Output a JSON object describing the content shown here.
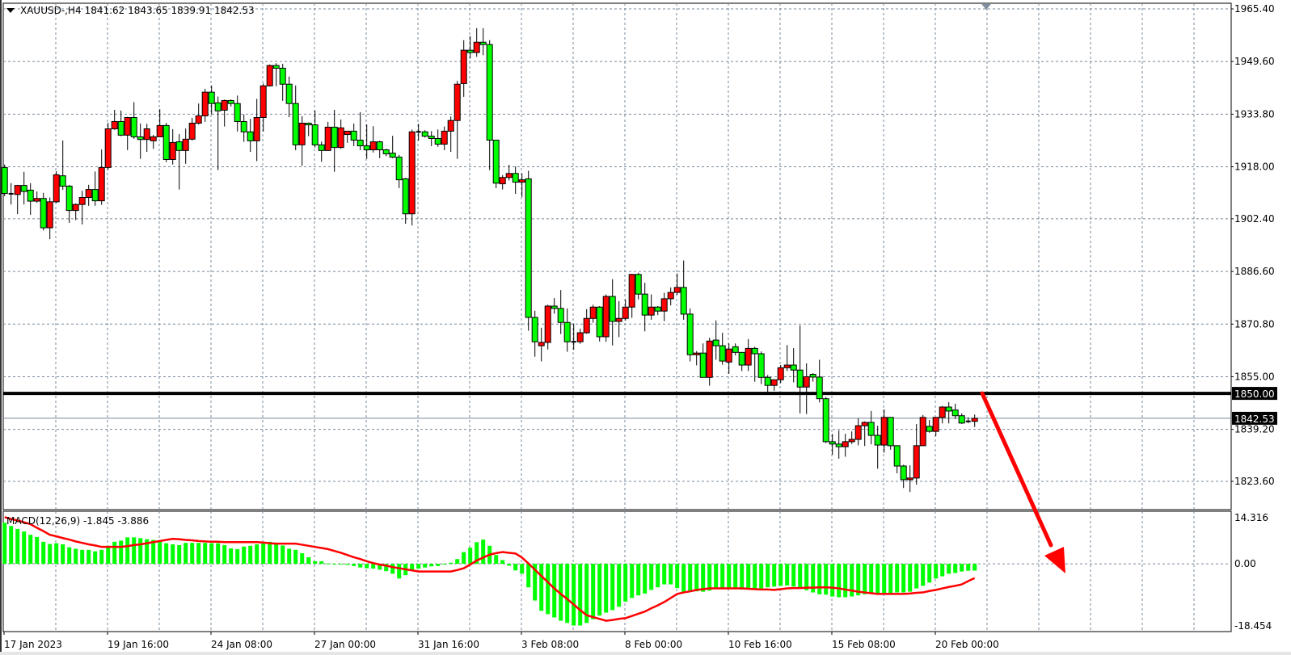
{
  "header": {
    "symbol": "XAUUSD-,H4",
    "ohlc_text": "1841.62 1843.65 1839.91 1842.53"
  },
  "price_axis": {
    "labels": [
      "1965.40",
      "1949.60",
      "1933.80",
      "1918.00",
      "1902.40",
      "1886.60",
      "1870.80",
      "1855.00",
      "1839.20",
      "1823.60"
    ]
  },
  "horizontal_line": {
    "price": 1850.0,
    "label": "1850.00",
    "color": "#000000"
  },
  "current_price": {
    "price": 1842.53,
    "label": "1842.53",
    "color": "#778899"
  },
  "time_axis": {
    "labels": [
      "17 Jan 2023",
      "19 Jan 16:00",
      "24 Jan 08:00",
      "27 Jan 00:00",
      "31 Jan 16:00",
      "3 Feb 08:00",
      "8 Feb 00:00",
      "10 Feb 16:00",
      "15 Feb 08:00",
      "20 Feb 00:00"
    ]
  },
  "macd": {
    "label": "MACD(12,26,9) -1.845 -3.886",
    "axis_labels": [
      "14.316",
      "0.00",
      "-18.454"
    ]
  },
  "arrow": {
    "color": "#ff0000",
    "direction": "down"
  },
  "colors": {
    "bull": "#ff0000",
    "bear": "#00ff00",
    "grid": "#778899",
    "histogram": "#00ff00",
    "signal": "#ff0000"
  },
  "chart_data": [
    {
      "type": "candlestick",
      "title": "XAUUSD-,H4",
      "ylim": [
        1823.6,
        1965.4
      ],
      "grid": true,
      "ohlc": [
        [
          1917.8,
          1918.7,
          1909.2,
          1910.0
        ],
        [
          1909.9,
          1913.1,
          1906.7,
          1909.8
        ],
        [
          1909.7,
          1912.6,
          1903.8,
          1912.4
        ],
        [
          1912.4,
          1916.5,
          1906.7,
          1910.6
        ],
        [
          1911.0,
          1913.1,
          1903.6,
          1907.7
        ],
        [
          1907.7,
          1910.6,
          1907.2,
          1908.5
        ],
        [
          1908.5,
          1910.2,
          1898.9,
          1899.7
        ],
        [
          1899.7,
          1908.8,
          1896.3,
          1907.5
        ],
        [
          1907.5,
          1916.7,
          1907.2,
          1915.6
        ],
        [
          1915.3,
          1925.9,
          1911.1,
          1912.2
        ],
        [
          1912.2,
          1912.6,
          1901.2,
          1904.9
        ],
        [
          1904.9,
          1907.0,
          1902.0,
          1906.7
        ],
        [
          1906.7,
          1910.8,
          1900.7,
          1908.8
        ],
        [
          1908.8,
          1912.6,
          1906.3,
          1911.2
        ],
        [
          1911.2,
          1916.6,
          1906.3,
          1907.8
        ],
        [
          1907.8,
          1923.2,
          1906.6,
          1917.8
        ],
        [
          1917.8,
          1931.2,
          1917.1,
          1929.4
        ],
        [
          1929.4,
          1935.1,
          1929.1,
          1931.6
        ],
        [
          1931.6,
          1934.9,
          1927.2,
          1927.5
        ],
        [
          1927.5,
          1933.0,
          1923.0,
          1932.8
        ],
        [
          1932.8,
          1937.4,
          1926.4,
          1927.0
        ],
        [
          1927.0,
          1931.0,
          1920.4,
          1926.2
        ],
        [
          1926.2,
          1930.9,
          1922.5,
          1929.4
        ],
        [
          1925.8,
          1927.6,
          1923.4,
          1927.0
        ],
        [
          1927.0,
          1935.3,
          1927.0,
          1930.4
        ],
        [
          1930.4,
          1931.2,
          1919.4,
          1920.2
        ],
        [
          1920.2,
          1929.3,
          1918.7,
          1925.3
        ],
        [
          1925.5,
          1927.8,
          1911.2,
          1922.9
        ],
        [
          1922.9,
          1929.5,
          1918.9,
          1926.3
        ],
        [
          1926.3,
          1932.7,
          1925.9,
          1931.1
        ],
        [
          1931.1,
          1937.0,
          1930.7,
          1933.3
        ],
        [
          1933.3,
          1941.4,
          1931.5,
          1940.4
        ],
        [
          1940.4,
          1942.4,
          1933.7,
          1937.0
        ],
        [
          1937.2,
          1939.1,
          1917.0,
          1934.8
        ],
        [
          1935.0,
          1938.2,
          1930.1,
          1937.9
        ],
        [
          1937.9,
          1938.2,
          1936.1,
          1937.0
        ],
        [
          1937.0,
          1939.4,
          1928.6,
          1931.6
        ],
        [
          1931.6,
          1933.7,
          1925.5,
          1928.5
        ],
        [
          1928.5,
          1932.4,
          1922.5,
          1925.8
        ],
        [
          1925.8,
          1938.4,
          1919.7,
          1932.8
        ],
        [
          1932.8,
          1943.0,
          1928.6,
          1942.3
        ],
        [
          1942.3,
          1948.7,
          1942.1,
          1948.4
        ],
        [
          1948.4,
          1949.1,
          1942.2,
          1947.6
        ],
        [
          1947.6,
          1948.9,
          1937.8,
          1942.8
        ],
        [
          1942.8,
          1945.1,
          1932.9,
          1937.0
        ],
        [
          1937.0,
          1942.4,
          1923.0,
          1924.6
        ],
        [
          1924.6,
          1933.2,
          1918.3,
          1931.1
        ],
        [
          1931.1,
          1931.3,
          1927.2,
          1930.6
        ],
        [
          1930.6,
          1934.9,
          1923.8,
          1924.6
        ],
        [
          1924.6,
          1925.6,
          1919.5,
          1922.9
        ],
        [
          1922.9,
          1931.5,
          1922.8,
          1929.9
        ],
        [
          1929.9,
          1935.1,
          1916.5,
          1923.8
        ],
        [
          1923.8,
          1932.2,
          1923.4,
          1929.7
        ],
        [
          1927.7,
          1928.7,
          1925.2,
          1928.7
        ],
        [
          1928.7,
          1931.0,
          1924.2,
          1926.0
        ],
        [
          1926.0,
          1934.4,
          1923.0,
          1924.3
        ],
        [
          1924.3,
          1930.7,
          1920.4,
          1923.1
        ],
        [
          1923.1,
          1930.2,
          1922.3,
          1925.5
        ],
        [
          1925.5,
          1925.8,
          1920.6,
          1923.1
        ],
        [
          1923.1,
          1923.4,
          1921.2,
          1921.9
        ],
        [
          1922.1,
          1927.3,
          1920.6,
          1920.9
        ],
        [
          1920.9,
          1921.6,
          1911.6,
          1914.1
        ],
        [
          1914.4,
          1914.7,
          1900.9,
          1903.9
        ],
        [
          1903.9,
          1929.2,
          1900.4,
          1928.5
        ],
        [
          1928.5,
          1930.9,
          1925.9,
          1928.5
        ],
        [
          1928.5,
          1929.0,
          1926.8,
          1927.2
        ],
        [
          1927.2,
          1928.7,
          1924.2,
          1926.5
        ],
        [
          1926.5,
          1929.2,
          1924.0,
          1924.8
        ],
        [
          1924.8,
          1930.1,
          1923.0,
          1928.7
        ],
        [
          1928.7,
          1933.1,
          1922.5,
          1931.9
        ],
        [
          1931.9,
          1943.8,
          1920.4,
          1942.8
        ],
        [
          1943.0,
          1956.0,
          1939.0,
          1953.0
        ],
        [
          1953.0,
          1957.2,
          1950.6,
          1952.3
        ],
        [
          1952.3,
          1959.6,
          1951.0,
          1955.4
        ],
        [
          1955.4,
          1959.6,
          1951.5,
          1954.7
        ],
        [
          1954.7,
          1956.0,
          1917.0,
          1926.0
        ],
        [
          1926.0,
          1926.0,
          1911.6,
          1913.1
        ],
        [
          1912.9,
          1915.5,
          1911.2,
          1914.8
        ],
        [
          1914.8,
          1918.6,
          1913.9,
          1916.0
        ],
        [
          1916.0,
          1918.1,
          1909.9,
          1913.4
        ],
        [
          1913.4,
          1916.0,
          1908.9,
          1914.1
        ],
        [
          1914.4,
          1916.8,
          1868.8,
          1872.8
        ],
        [
          1872.8,
          1874.8,
          1861.0,
          1865.5
        ],
        [
          1864.3,
          1869.7,
          1859.6,
          1865.3
        ],
        [
          1865.3,
          1876.6,
          1863.2,
          1876.2
        ],
        [
          1876.2,
          1878.6,
          1873.9,
          1875.5
        ],
        [
          1875.5,
          1881.0,
          1867.8,
          1871.3
        ],
        [
          1871.3,
          1875.5,
          1862.5,
          1865.5
        ],
        [
          1865.5,
          1870.9,
          1863.1,
          1865.5
        ],
        [
          1865.5,
          1869.4,
          1864.9,
          1868.2
        ],
        [
          1868.2,
          1875.3,
          1867.9,
          1872.5
        ],
        [
          1872.5,
          1876.6,
          1871.2,
          1875.9
        ],
        [
          1875.9,
          1876.2,
          1865.6,
          1867.0
        ],
        [
          1867.0,
          1879.7,
          1865.5,
          1879.1
        ],
        [
          1879.1,
          1884.3,
          1864.4,
          1871.6
        ],
        [
          1871.6,
          1877.7,
          1866.9,
          1872.5
        ],
        [
          1872.5,
          1878.2,
          1871.9,
          1875.9
        ],
        [
          1875.9,
          1885.9,
          1872.7,
          1885.7
        ],
        [
          1885.7,
          1886.2,
          1878.2,
          1879.8
        ],
        [
          1879.8,
          1883.2,
          1868.6,
          1873.5
        ],
        [
          1873.5,
          1879.7,
          1872.1,
          1875.9
        ],
        [
          1875.9,
          1876.2,
          1873.5,
          1874.7
        ],
        [
          1874.7,
          1880.2,
          1871.7,
          1878.4
        ],
        [
          1878.4,
          1881.8,
          1876.4,
          1880.3
        ],
        [
          1880.3,
          1886.0,
          1879.6,
          1881.8
        ],
        [
          1881.8,
          1889.9,
          1872.1,
          1873.8
        ],
        [
          1873.8,
          1875.5,
          1859.6,
          1861.6
        ],
        [
          1861.6,
          1862.7,
          1858.4,
          1862.1
        ],
        [
          1862.1,
          1865.0,
          1854.8,
          1854.8
        ],
        [
          1854.8,
          1866.7,
          1852.3,
          1865.7
        ],
        [
          1866.0,
          1871.9,
          1860.1,
          1864.3
        ],
        [
          1864.3,
          1868.2,
          1858.6,
          1859.7
        ],
        [
          1859.4,
          1865.0,
          1855.9,
          1863.3
        ],
        [
          1864.0,
          1865.0,
          1861.4,
          1862.3
        ],
        [
          1862.3,
          1862.3,
          1856.7,
          1858.5
        ],
        [
          1858.5,
          1866.3,
          1856.7,
          1863.5
        ],
        [
          1863.5,
          1864.0,
          1853.5,
          1861.9
        ],
        [
          1861.9,
          1862.6,
          1852.8,
          1854.8
        ],
        [
          1854.8,
          1855.5,
          1850.3,
          1852.4
        ],
        [
          1852.4,
          1854.1,
          1850.8,
          1854.1
        ],
        [
          1854.1,
          1858.5,
          1853.1,
          1857.7
        ],
        [
          1857.7,
          1864.5,
          1856.7,
          1858.5
        ],
        [
          1858.5,
          1863.6,
          1853.3,
          1857.0
        ],
        [
          1857.0,
          1870.4,
          1844.0,
          1851.9
        ],
        [
          1851.9,
          1859.0,
          1843.8,
          1855.0
        ],
        [
          1855.7,
          1856.1,
          1853.5,
          1854.9
        ],
        [
          1854.9,
          1860.1,
          1847.3,
          1848.4
        ],
        [
          1848.4,
          1848.9,
          1835.1,
          1835.5
        ],
        [
          1835.5,
          1837.8,
          1831.6,
          1834.8
        ],
        [
          1834.8,
          1838.9,
          1830.4,
          1834.0
        ],
        [
          1834.0,
          1837.9,
          1831.0,
          1835.5
        ],
        [
          1835.5,
          1838.6,
          1834.8,
          1836.2
        ],
        [
          1836.2,
          1842.5,
          1834.4,
          1840.3
        ],
        [
          1840.3,
          1841.6,
          1834.2,
          1841.3
        ],
        [
          1841.3,
          1844.7,
          1834.7,
          1837.4
        ],
        [
          1837.4,
          1840.3,
          1827.4,
          1834.5
        ],
        [
          1834.5,
          1845.2,
          1832.2,
          1842.8
        ],
        [
          1842.8,
          1842.8,
          1833.1,
          1834.3
        ],
        [
          1834.3,
          1834.3,
          1826.0,
          1828.2
        ],
        [
          1828.2,
          1828.6,
          1821.6,
          1824.1
        ],
        [
          1824.1,
          1828.4,
          1820.4,
          1824.6
        ],
        [
          1824.6,
          1840.8,
          1822.6,
          1834.3
        ],
        [
          1834.3,
          1843.5,
          1834.2,
          1842.8
        ],
        [
          1840.1,
          1842.0,
          1838.2,
          1838.6
        ],
        [
          1838.6,
          1842.8,
          1837.2,
          1842.8
        ],
        [
          1842.8,
          1846.2,
          1841.0,
          1845.9
        ],
        [
          1845.9,
          1847.4,
          1841.0,
          1844.7
        ],
        [
          1845.0,
          1846.9,
          1842.3,
          1843.3
        ],
        [
          1843.3,
          1844.0,
          1840.8,
          1841.1
        ],
        [
          1841.6,
          1842.8,
          1841.1,
          1841.6
        ],
        [
          1841.62,
          1843.65,
          1839.91,
          1842.53
        ]
      ]
    },
    {
      "type": "bar",
      "title": "MACD(12,26,9)",
      "ylim": [
        -18.454,
        14.316
      ],
      "histogram": [
        11.2,
        10.3,
        9.5,
        8.8,
        7.9,
        7.3,
        6.0,
        5.4,
        5.6,
        5.3,
        4.5,
        4.1,
        3.8,
        3.8,
        3.4,
        3.8,
        4.9,
        6.0,
        6.3,
        7.2,
        7.2,
        7.0,
        6.7,
        6.5,
        6.0,
        5.6,
        5.3,
        5.1,
        5.7,
        5.7,
        5.7,
        5.7,
        5.6,
        5.6,
        5.1,
        4.2,
        4.0,
        4.7,
        4.9,
        5.3,
        5.9,
        6.0,
        5.4,
        5.0,
        4.1,
        3.8,
        2.9,
        1.8,
        0.7,
        0.7,
        0.1,
        0.0,
        -0.1,
        -0.3,
        -0.6,
        -1.0,
        -1.2,
        -1.3,
        -1.6,
        -2.0,
        -2.7,
        -4.0,
        -3.1,
        -1.9,
        -1.3,
        -1.0,
        -0.7,
        -0.6,
        -0.2,
        0.3,
        1.3,
        3.2,
        4.4,
        5.9,
        6.6,
        4.9,
        2.4,
        1.0,
        -0.5,
        -1.8,
        -2.7,
        -6.4,
        -10.0,
        -12.8,
        -13.7,
        -14.6,
        -15.5,
        -16.1,
        -16.8,
        -16.8,
        -16.1,
        -15.1,
        -14.1,
        -13.3,
        -12.6,
        -11.7,
        -10.3,
        -9.3,
        -8.6,
        -8.1,
        -7.1,
        -6.4,
        -5.6,
        -5.6,
        -6.6,
        -7.7,
        -7.3,
        -7.5,
        -7.6,
        -7.3,
        -6.5,
        -6.5,
        -6.7,
        -6.7,
        -7.0,
        -7.0,
        -6.7,
        -6.7,
        -6.4,
        -6.2,
        -6.0,
        -5.9,
        -6.2,
        -6.6,
        -7.2,
        -7.8,
        -8.3,
        -8.4,
        -8.9,
        -9.1,
        -9.1,
        -8.9,
        -8.6,
        -8.3,
        -8.1,
        -8.1,
        -8.0,
        -8.0,
        -7.8,
        -7.8,
        -7.6,
        -6.7,
        -6.0,
        -5.1,
        -4.0,
        -3.4,
        -2.7,
        -2.5,
        -2.1,
        -1.9,
        -1.845
      ],
      "signal": [
        12.7,
        12.2,
        11.8,
        11.3,
        10.8,
        9.8,
        8.9,
        7.9,
        7.5,
        7.0,
        6.6,
        6.1,
        5.7,
        5.3,
        5.0,
        4.6,
        4.6,
        4.6,
        4.6,
        4.8,
        5.1,
        5.3,
        5.6,
        5.9,
        6.2,
        6.5,
        6.8,
        6.7,
        6.5,
        6.4,
        6.2,
        6.1,
        6.0,
        6.0,
        5.9,
        5.9,
        5.9,
        5.9,
        5.9,
        5.9,
        5.8,
        5.6,
        5.5,
        5.5,
        5.5,
        5.5,
        5.2,
        4.9,
        4.6,
        4.3,
        4.0,
        3.5,
        3.0,
        2.4,
        1.8,
        1.3,
        0.7,
        0.2,
        -0.2,
        -0.5,
        -0.9,
        -1.2,
        -1.5,
        -1.8,
        -2.1,
        -2.1,
        -2.1,
        -2.1,
        -2.1,
        -2.1,
        -1.7,
        -1.2,
        -0.2,
        0.9,
        1.7,
        2.5,
        2.9,
        3.2,
        3.0,
        2.8,
        1.7,
        0.1,
        -1.6,
        -3.3,
        -5.0,
        -6.7,
        -8.2,
        -9.6,
        -11.1,
        -12.6,
        -14.0,
        -14.5,
        -15.0,
        -15.5,
        -15.3,
        -15.0,
        -14.8,
        -14.2,
        -13.6,
        -13.0,
        -12.1,
        -11.3,
        -10.4,
        -9.3,
        -8.2,
        -7.8,
        -7.5,
        -7.1,
        -6.9,
        -6.7,
        -6.7,
        -6.7,
        -6.7,
        -6.7,
        -6.7,
        -6.8,
        -6.9,
        -7.0,
        -7.0,
        -7.1,
        -6.9,
        -6.7,
        -6.6,
        -6.6,
        -6.5,
        -6.5,
        -6.4,
        -6.4,
        -6.5,
        -6.7,
        -7.0,
        -7.3,
        -7.6,
        -7.8,
        -8.0,
        -8.2,
        -8.2,
        -8.2,
        -8.2,
        -8.2,
        -8.1,
        -7.9,
        -7.8,
        -7.4,
        -7.1,
        -6.7,
        -6.3,
        -6.0,
        -5.6,
        -4.7,
        -3.886
      ]
    }
  ]
}
